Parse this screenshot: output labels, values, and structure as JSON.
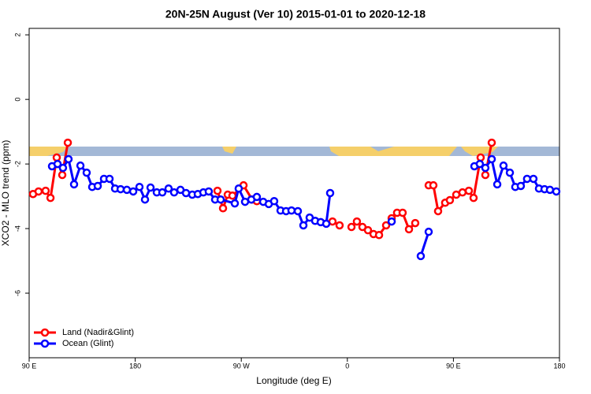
{
  "chart_data": {
    "type": "line",
    "title": "20N-25N August (Ver 10)   2015-01-01 to 2020-12-18",
    "xlabel": "Longitude (deg E)",
    "ylabel": "XCO2 - MLO trend (ppm)",
    "xlim": [
      90,
      540
    ],
    "ylim": [
      -8,
      2.2
    ],
    "xticks": [
      {
        "value": 90,
        "label": "90 E"
      },
      {
        "value": 180,
        "label": "180"
      },
      {
        "value": 270,
        "label": "90 W"
      },
      {
        "value": 360,
        "label": "0"
      },
      {
        "value": 450,
        "label": "90 E"
      },
      {
        "value": 540,
        "label": "180"
      }
    ],
    "yticks": [
      -6,
      -4,
      -2,
      0,
      2
    ],
    "legend": "bottom-left",
    "series": [
      {
        "name": "Land (Nadir&Glint)",
        "color": "#ff0000",
        "x": [
          93.3,
          98.0,
          104.0,
          108.1,
          113.4,
          118.1,
          122.8,
          null,
          249.8,
          254.5,
          258.5,
          262.5,
          271.9,
          279.2,
          283.2,
          null,
          347.4,
          353.4,
          null,
          363.5,
          368.1,
          372.8,
          377.5,
          382.2,
          386.9,
          392.9,
          397.6,
          402.2,
          406.9,
          412.3,
          417.6,
          null,
          429.0,
          433.0,
          437.0,
          443.0,
          447.0,
          452.4,
          457.7,
          463.1,
          467.1,
          473.1,
          477.1,
          482.5
        ],
        "values": [
          -2.93,
          -2.85,
          -2.83,
          -3.05,
          -1.8,
          -2.34,
          -1.34,
          null,
          -2.83,
          -3.37,
          -2.95,
          -2.98,
          -2.66,
          -3.1,
          -3.15,
          null,
          -3.78,
          -3.9,
          null,
          -3.95,
          -3.78,
          -3.95,
          -4.05,
          -4.17,
          -4.2,
          -3.9,
          -3.68,
          -3.51,
          -3.51,
          -4.02,
          -3.83,
          null,
          -2.66,
          -2.66,
          -3.46,
          -3.2,
          -3.12,
          -2.95,
          -2.88,
          -2.83,
          -3.05,
          -1.8,
          -2.34,
          -1.34
        ]
      },
      {
        "name": "Ocean (Glint)",
        "color": "#0000ff",
        "x": [
          109.4,
          114.1,
          118.7,
          123.4,
          128.1,
          133.5,
          138.8,
          143.5,
          148.2,
          153.5,
          158.2,
          162.9,
          167.6,
          172.9,
          178.3,
          183.6,
          188.3,
          193.0,
          198.3,
          203.0,
          208.3,
          213.0,
          218.4,
          223.1,
          228.4,
          233.1,
          237.8,
          242.4,
          247.8,
          252.5,
          264.5,
          267.8,
          273.2,
          278.5,
          283.2,
          288.6,
          293.3,
          297.9,
          303.3,
          308.0,
          312.6,
          318.0,
          322.7,
          328.0,
          332.7,
          337.4,
          342.1,
          345.4,
          null,
          397.6,
          null,
          422.3,
          429.0,
          null,
          467.8,
          472.4,
          477.1,
          482.5,
          487.2,
          492.5,
          497.9,
          502.5,
          507.2,
          512.5,
          517.9,
          522.6,
          527.3,
          531.9,
          537.3
        ],
        "values": [
          -2.07,
          -2.0,
          -2.12,
          -1.85,
          -2.63,
          -2.05,
          -2.27,
          -2.71,
          -2.68,
          -2.46,
          -2.46,
          -2.76,
          -2.78,
          -2.8,
          -2.85,
          -2.71,
          -3.1,
          -2.73,
          -2.88,
          -2.88,
          -2.76,
          -2.88,
          -2.8,
          -2.9,
          -2.95,
          -2.93,
          -2.88,
          -2.85,
          -3.1,
          -3.1,
          -3.22,
          -2.76,
          -3.17,
          -3.1,
          -3.02,
          -3.17,
          -3.24,
          -3.15,
          -3.44,
          -3.46,
          -3.44,
          -3.46,
          -3.9,
          -3.66,
          -3.76,
          -3.8,
          -3.85,
          -2.9,
          null,
          -3.78,
          null,
          -4.85,
          -4.1,
          null,
          -2.07,
          -2.0,
          -2.12,
          -1.85,
          -2.63,
          -2.05,
          -2.27,
          -2.71,
          -2.68,
          -2.46,
          -2.46,
          -2.76,
          -2.78,
          -2.8,
          -2.85
        ]
      }
    ]
  }
}
